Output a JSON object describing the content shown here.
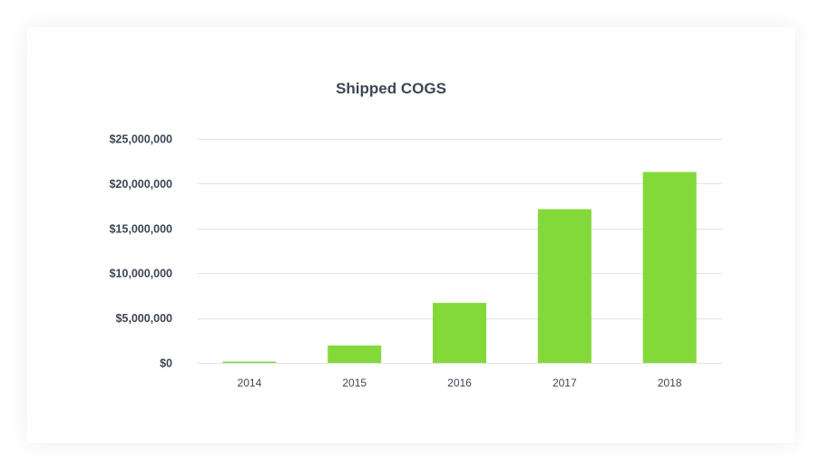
{
  "chart_data": {
    "type": "bar",
    "title": "Shipped COGS",
    "xlabel": "",
    "ylabel": "",
    "categories": [
      "2014",
      "2015",
      "2016",
      "2017",
      "2018"
    ],
    "values": [
      150000,
      1950000,
      6700000,
      17150000,
      21300000
    ],
    "ylim": [
      0,
      25000000
    ],
    "yticks": [
      0,
      5000000,
      10000000,
      15000000,
      20000000,
      25000000
    ],
    "ytick_labels": [
      "$0",
      "$5,000,000",
      "$10,000,000",
      "$15,000,000",
      "$20,000,000",
      "$25,000,000"
    ],
    "grid": true,
    "legend": "none",
    "bar_color": "#83d939",
    "grid_color": "#e3e3e3",
    "text_color": "#3d4654"
  }
}
